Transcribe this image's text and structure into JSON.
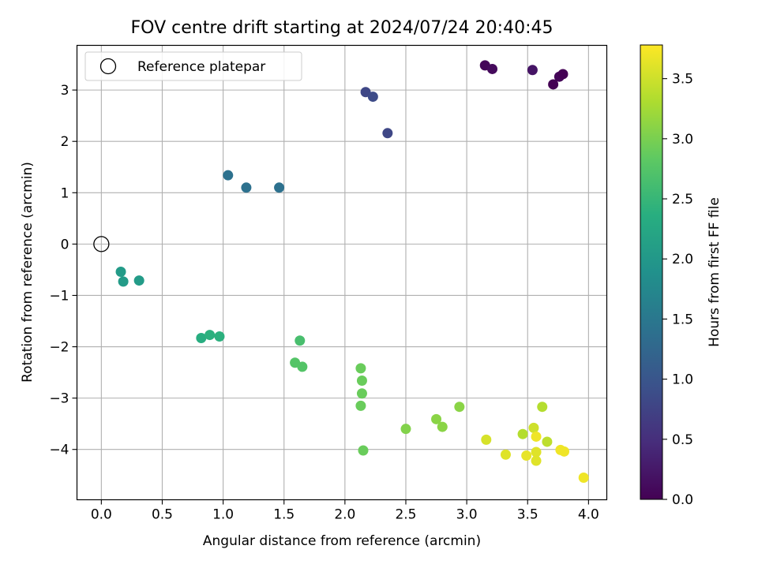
{
  "chart_data": {
    "type": "scatter",
    "title": "FOV centre drift starting at 2024/07/24 20:40:45",
    "xlabel": "Angular distance from reference (arcmin)",
    "ylabel": "Rotation from reference (arcmin)",
    "xlim": [
      -0.2,
      4.15
    ],
    "ylim": [
      -4.98,
      3.87
    ],
    "xticks": [
      0.0,
      0.5,
      1.0,
      1.5,
      2.0,
      2.5,
      3.0,
      3.5,
      4.0
    ],
    "xtick_labels": [
      "0.0",
      "0.5",
      "1.0",
      "1.5",
      "2.0",
      "2.5",
      "3.0",
      "3.5",
      "4.0"
    ],
    "yticks": [
      -4,
      -3,
      -2,
      -1,
      0,
      1,
      2,
      3
    ],
    "ytick_labels": [
      "−4",
      "−3",
      "−2",
      "−1",
      "0",
      "1",
      "2",
      "3"
    ],
    "grid": true,
    "legend": {
      "placement": "upper-left",
      "entries": [
        {
          "label": "Reference platepar",
          "marker": "open-circle"
        }
      ]
    },
    "reference_point": {
      "x": 0.0,
      "y": 0.0
    },
    "colorbar": {
      "label": "Hours from first FF file",
      "range": [
        0.0,
        3.78
      ],
      "colormap": "viridis",
      "ticks": [
        0.0,
        0.5,
        1.0,
        1.5,
        2.0,
        2.5,
        3.0,
        3.5
      ],
      "tick_labels": [
        "0.0",
        "0.5",
        "1.0",
        "1.5",
        "2.0",
        "2.5",
        "3.0",
        "3.5"
      ]
    },
    "points": [
      {
        "x": 3.15,
        "y": 3.48,
        "hours": 0.05
      },
      {
        "x": 3.21,
        "y": 3.41,
        "hours": 0.1
      },
      {
        "x": 3.54,
        "y": 3.39,
        "hours": 0.2
      },
      {
        "x": 3.76,
        "y": 3.26,
        "hours": 0.05
      },
      {
        "x": 3.79,
        "y": 3.31,
        "hours": 0.0
      },
      {
        "x": 3.71,
        "y": 3.11,
        "hours": 0.0
      },
      {
        "x": 2.17,
        "y": 2.96,
        "hours": 0.8
      },
      {
        "x": 2.23,
        "y": 2.87,
        "hours": 0.85
      },
      {
        "x": 2.35,
        "y": 2.16,
        "hours": 0.8
      },
      {
        "x": 1.04,
        "y": 1.34,
        "hours": 1.4
      },
      {
        "x": 1.19,
        "y": 1.1,
        "hours": 1.4
      },
      {
        "x": 1.46,
        "y": 1.1,
        "hours": 1.4
      },
      {
        "x": 0.16,
        "y": -0.54,
        "hours": 2.05
      },
      {
        "x": 0.18,
        "y": -0.73,
        "hours": 2.05
      },
      {
        "x": 0.31,
        "y": -0.71,
        "hours": 2.05
      },
      {
        "x": 0.82,
        "y": -1.83,
        "hours": 2.35
      },
      {
        "x": 0.89,
        "y": -1.77,
        "hours": 2.4
      },
      {
        "x": 0.97,
        "y": -1.8,
        "hours": 2.4
      },
      {
        "x": 1.63,
        "y": -1.88,
        "hours": 2.65
      },
      {
        "x": 1.59,
        "y": -2.31,
        "hours": 2.75
      },
      {
        "x": 1.65,
        "y": -2.39,
        "hours": 2.75
      },
      {
        "x": 2.13,
        "y": -2.42,
        "hours": 2.9
      },
      {
        "x": 2.14,
        "y": -2.66,
        "hours": 2.9
      },
      {
        "x": 2.14,
        "y": -2.91,
        "hours": 2.9
      },
      {
        "x": 2.13,
        "y": -3.15,
        "hours": 2.9
      },
      {
        "x": 2.15,
        "y": -4.02,
        "hours": 2.9
      },
      {
        "x": 2.5,
        "y": -3.6,
        "hours": 3.05
      },
      {
        "x": 2.75,
        "y": -3.41,
        "hours": 3.1
      },
      {
        "x": 2.8,
        "y": -3.56,
        "hours": 3.1
      },
      {
        "x": 2.94,
        "y": -3.17,
        "hours": 3.1
      },
      {
        "x": 3.16,
        "y": -3.81,
        "hours": 3.55
      },
      {
        "x": 3.32,
        "y": -4.1,
        "hours": 3.6
      },
      {
        "x": 3.46,
        "y": -3.7,
        "hours": 3.35
      },
      {
        "x": 3.49,
        "y": -4.12,
        "hours": 3.65
      },
      {
        "x": 3.55,
        "y": -3.58,
        "hours": 3.5
      },
      {
        "x": 3.57,
        "y": -3.75,
        "hours": 3.7
      },
      {
        "x": 3.57,
        "y": -4.05,
        "hours": 3.6
      },
      {
        "x": 3.57,
        "y": -4.22,
        "hours": 3.6
      },
      {
        "x": 3.62,
        "y": -3.17,
        "hours": 3.35
      },
      {
        "x": 3.66,
        "y": -3.85,
        "hours": 3.4
      },
      {
        "x": 3.77,
        "y": -4.01,
        "hours": 3.7
      },
      {
        "x": 3.8,
        "y": -4.04,
        "hours": 3.7
      },
      {
        "x": 3.96,
        "y": -4.55,
        "hours": 3.7
      }
    ]
  }
}
